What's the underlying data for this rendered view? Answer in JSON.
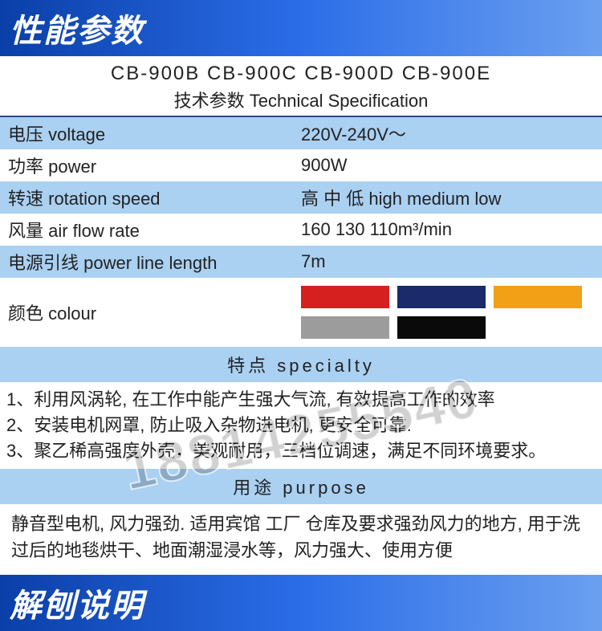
{
  "header1": "性能参数",
  "header2": "解刨说明",
  "spec": {
    "models": "CB-900B  CB-900C  CB-900D  CB-900E",
    "subtitle": "技术参数 Technical Specification",
    "rows": [
      {
        "label": "电压 voltage",
        "value": "220V-240V～",
        "bg": "blue"
      },
      {
        "label": "功率 power",
        "value": "900W",
        "bg": "white"
      },
      {
        "label": "转速 rotation speed",
        "value": "高 中 低 high medium low",
        "bg": "blue"
      },
      {
        "label": "风量 air flow rate",
        "value": "160   130   110m³/min",
        "bg": "white"
      },
      {
        "label": "电源引线 power line length",
        "value": "7m",
        "bg": "blue"
      }
    ],
    "color_label": "颜色 colour",
    "color_swatches": [
      "#d62020",
      "#1a2a6b",
      "#f2a015",
      "#9c9c9c",
      "#0a0a0a"
    ]
  },
  "specialty": {
    "heading": "特点    specialty",
    "lines": [
      "1、利用风涡轮, 在工作中能产生强大气流, 有效提高工作的效率",
      "2、安装电机网罩, 防止吸入杂物进电机, 更安全可靠.",
      "3、聚乙稀高强度外壳，美观耐用，三档位调速，满足不同环境要求。"
    ]
  },
  "purpose": {
    "heading": "用途    purpose",
    "text": "静音型电机, 风力强劲. 适用宾馆  工厂  仓库及要求强劲风力的地方, 用于洗过后的地毯烘干、地面潮湿浸水等，风力强大、使用方便"
  },
  "watermark": "18814255540"
}
